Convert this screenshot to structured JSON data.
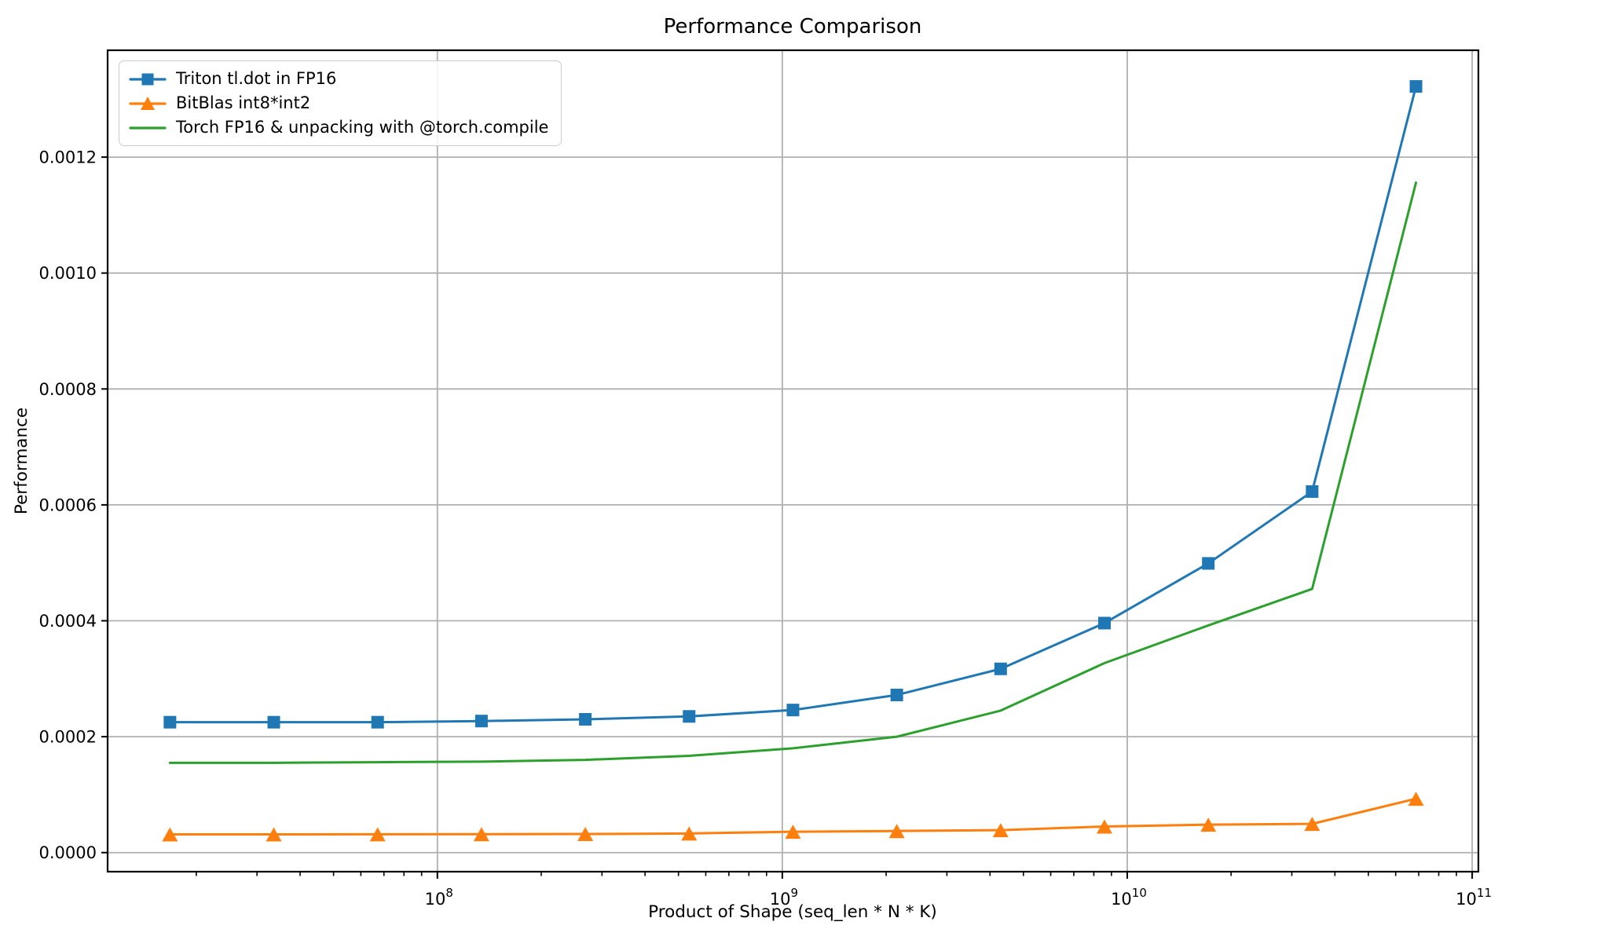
{
  "figure": {
    "title": "Performance Comparison"
  },
  "chart_data": {
    "type": "line",
    "title": "Performance Comparison",
    "xlabel": "Product of Shape (seq_len * N * K)",
    "ylabel": "Performance",
    "x_scale": "log",
    "grid": true,
    "legend_position": "upper left",
    "x": [
      16777216,
      33554432,
      67108864,
      134217728,
      268435456,
      536870912,
      1073741824,
      2147483648,
      4294967296,
      8589934592,
      17179869184,
      34359738368,
      68719476736
    ],
    "series": [
      {
        "name": "Triton tl.dot in FP16",
        "color": "#1f77b4",
        "marker": "square",
        "values": [
          0.000225,
          0.000225,
          0.000225,
          0.000227,
          0.00023,
          0.000235,
          0.000246,
          0.000272,
          0.000317,
          0.000396,
          0.000499,
          0.000623,
          0.001322
        ]
      },
      {
        "name": "BitBlas int8*int2",
        "color": "#ff7f0e",
        "marker": "triangle-up",
        "values": [
          3.15e-05,
          3.15e-05,
          3.16e-05,
          3.18e-05,
          3.21e-05,
          3.3e-05,
          3.6e-05,
          3.73e-05,
          3.88e-05,
          4.5e-05,
          4.82e-05,
          4.96e-05,
          9.3e-05
        ]
      },
      {
        "name": "Torch FP16 & unpacking with @torch.compile",
        "color": "#2ca02c",
        "marker": "none",
        "values": [
          0.000155,
          0.000155,
          0.000156,
          0.000157,
          0.00016,
          0.000167,
          0.00018,
          0.0002,
          0.000245,
          0.000327,
          0.000392,
          0.000455,
          0.001156
        ]
      }
    ],
    "x_ticks": {
      "base": "10",
      "exponents": [
        8,
        9,
        10,
        11
      ]
    },
    "y_ticks": [
      0.0,
      0.0002,
      0.0004,
      0.0006,
      0.0008,
      0.001,
      0.0012
    ],
    "y_tick_labels": [
      "0.0000",
      "0.0002",
      "0.0004",
      "0.0006",
      "0.0008",
      "0.0010",
      "0.0012"
    ],
    "xlim_log": [
      7.044,
      11.018
    ],
    "ylim": [
      -3.29e-05,
      0.0013844
    ],
    "colors": {
      "grid": "#b0b0b0",
      "spine": "#000000",
      "background": "#ffffff"
    }
  }
}
